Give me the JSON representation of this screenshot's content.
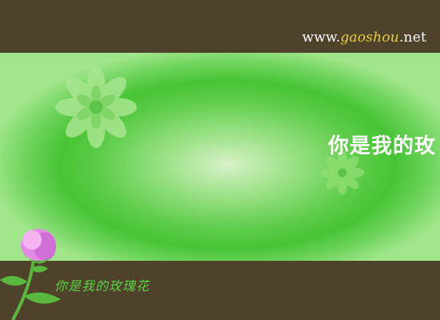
{
  "site": {
    "url_prefix": "www.",
    "url_domain": "gaoshou",
    "url_suffix": ".net"
  },
  "banner": {
    "title": "你是我的玫"
  },
  "footer": {
    "caption": "你是我的玫瑰花"
  },
  "icons": {
    "big_flower": "flower-icon",
    "small_flower": "flower-icon",
    "rose": "rose-icon"
  },
  "colors": {
    "frame": "#4e422a",
    "banner_green": "#47c435",
    "caption_green": "#5cd046",
    "url_accent": "#e8d040"
  }
}
